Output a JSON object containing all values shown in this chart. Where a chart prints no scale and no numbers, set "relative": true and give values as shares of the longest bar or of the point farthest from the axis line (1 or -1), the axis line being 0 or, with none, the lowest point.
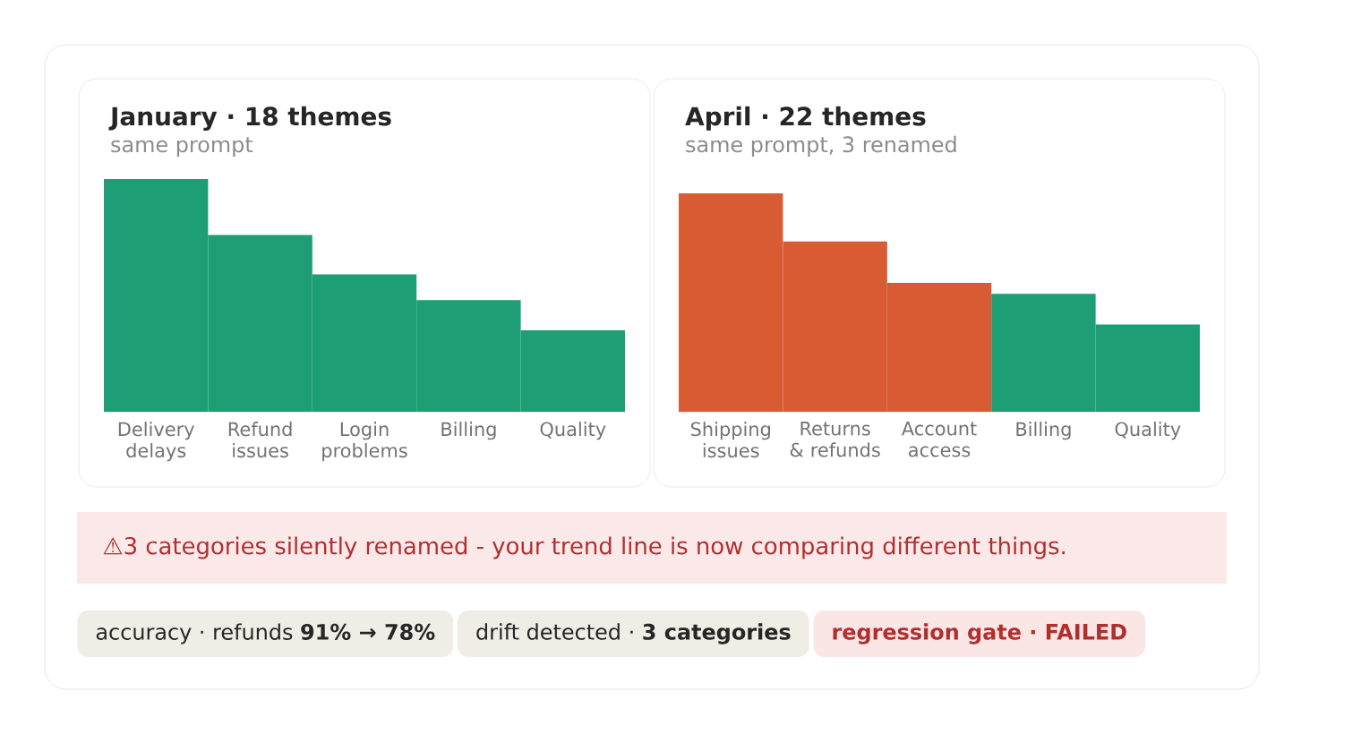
{
  "chart_data": [
    {
      "type": "bar",
      "title": "January · 18 themes",
      "subtitle": "same prompt",
      "relative": true,
      "categories": [
        "Delivery delays",
        "Refund issues",
        "Login problems",
        "Billing",
        "Quality"
      ],
      "values": [
        1,
        0.76,
        0.59,
        0.48,
        0.35
      ],
      "colors": [
        "#1e9e74",
        "#1e9e74",
        "#1e9e74",
        "#1e9e74",
        "#1e9e74"
      ]
    },
    {
      "type": "bar",
      "title": "April · 22 themes",
      "subtitle": "same prompt, 3 renamed",
      "relative": true,
      "categories": [
        "Shipping issues",
        "Returns & refunds",
        "Account access",
        "Billing",
        "Quality"
      ],
      "values": [
        1,
        0.78,
        0.59,
        0.54,
        0.4
      ],
      "colors": [
        "#d95b33",
        "#d95b33",
        "#d95b33",
        "#1e9e74",
        "#1e9e74"
      ]
    },
    {
      "type": "other",
      "annotations": [
        "⚠3 categories silently renamed - your trend line is now comparing different things.",
        "accuracy · refunds **91% → 78%**",
        "drift detected · **3 categories**",
        "regression gate · FAILED"
      ]
    }
  ]
}
